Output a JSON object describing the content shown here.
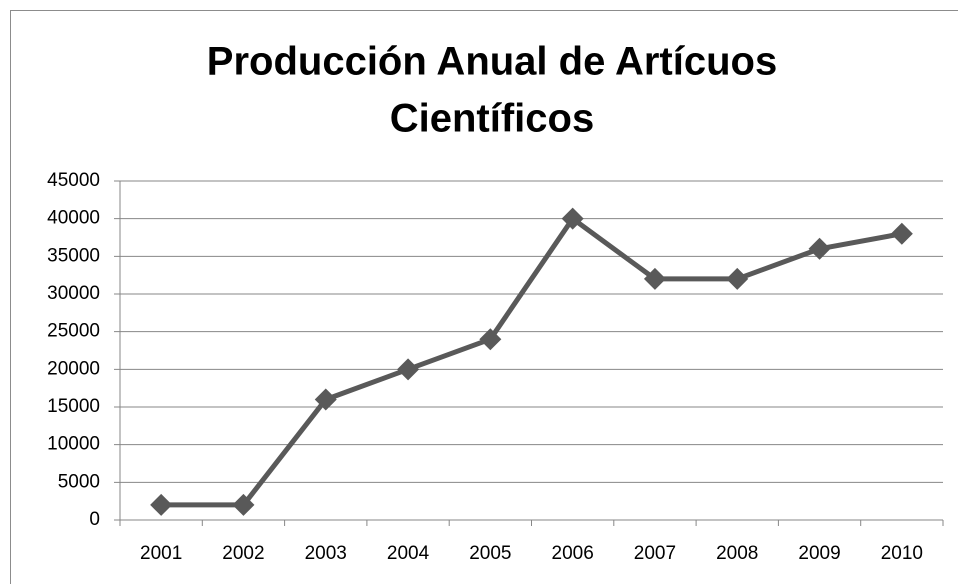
{
  "chart_data": {
    "type": "line",
    "title": [
      "Producción  Anual de Artícuos",
      "Científicos"
    ],
    "categories": [
      "2001",
      "2002",
      "2003",
      "2004",
      "2005",
      "2006",
      "2007",
      "2008",
      "2009",
      "2010"
    ],
    "values": [
      2000,
      2000,
      16000,
      20000,
      24000,
      40000,
      32000,
      32000,
      36000,
      38000
    ],
    "color": "#595959",
    "ylim": [
      0,
      45000
    ],
    "yticks": [
      0,
      5000,
      10000,
      15000,
      20000,
      25000,
      30000,
      35000,
      40000,
      45000
    ],
    "grid": true
  }
}
